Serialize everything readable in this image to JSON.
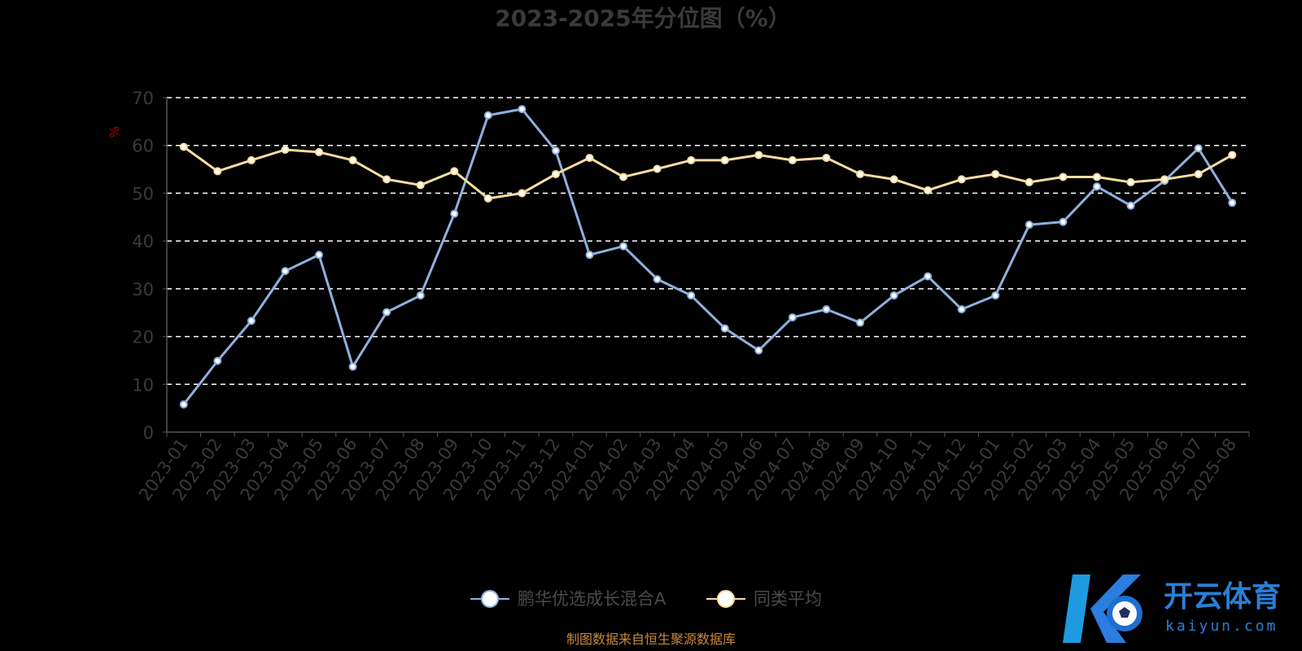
{
  "chart_data": {
    "type": "line",
    "title": "2023-2025年分位图（%）",
    "ylabel": "%",
    "ylim": [
      0,
      70
    ],
    "yticks": [
      0,
      10,
      20,
      30,
      40,
      50,
      60,
      70
    ],
    "grid": true,
    "legend_position": "bottom",
    "categories": [
      "2023-01",
      "2023-02",
      "2023-03",
      "2023-04",
      "2023-05",
      "2023-06",
      "2023-07",
      "2023-08",
      "2023-09",
      "2023-10",
      "2023-11",
      "2023-12",
      "2024-01",
      "2024-02",
      "2024-03",
      "2024-04",
      "2024-05",
      "2024-06",
      "2024-07",
      "2024-08",
      "2024-09",
      "2024-10",
      "2024-11",
      "2024-12",
      "2025-01",
      "2025-02",
      "2025-03",
      "2025-04",
      "2025-05",
      "2025-06",
      "2025-07",
      "2025-08"
    ],
    "series": [
      {
        "name": "鹏华优选成长混合A",
        "color": "#8fb0de",
        "values": [
          5.8,
          14.9,
          23.3,
          33.7,
          37.1,
          13.7,
          25.1,
          28.6,
          45.7,
          66.3,
          67.6,
          58.9,
          37.1,
          38.9,
          32.0,
          28.6,
          21.7,
          17.1,
          24.0,
          25.7,
          22.9,
          28.6,
          32.6,
          25.7,
          28.6,
          43.4,
          44.0,
          51.4,
          47.4,
          52.6,
          59.4,
          48.0
        ]
      },
      {
        "name": "同类平均",
        "color": "#f9dda0",
        "values": [
          59.7,
          54.6,
          56.9,
          59.1,
          58.6,
          56.9,
          52.9,
          51.7,
          54.6,
          48.9,
          50.0,
          54.0,
          57.4,
          53.4,
          55.1,
          56.9,
          56.9,
          58.0,
          56.9,
          57.4,
          54.0,
          52.9,
          50.6,
          52.9,
          54.0,
          52.3,
          53.4,
          53.4,
          52.3,
          52.9,
          54.0,
          58.0
        ]
      }
    ],
    "source_note": "制图数据来自恒生聚源数据库"
  },
  "watermark": {
    "brand": "开云体育",
    "domain": "kaiyun.com"
  },
  "colors": {
    "background": "#000000",
    "grid": "#ffffff",
    "axis": "#555555"
  }
}
